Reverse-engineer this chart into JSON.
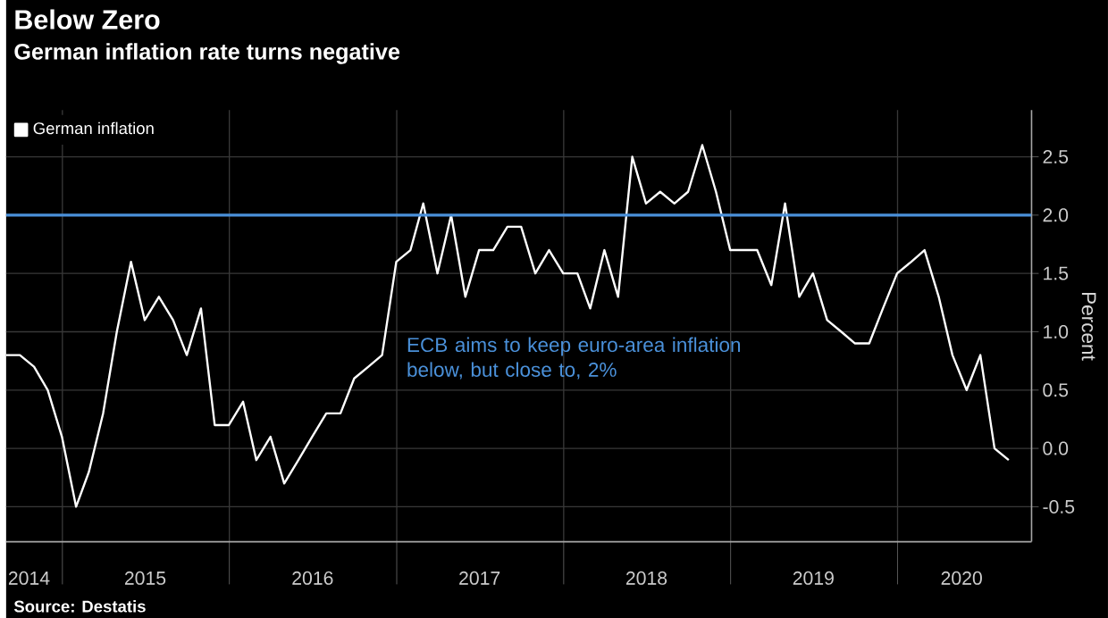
{
  "chart_data": {
    "type": "line",
    "title": "Below Zero",
    "subtitle": "German inflation rate turns negative",
    "ylabel": "Percent",
    "annotations": [
      "Source: Destatis"
    ],
    "x": [
      "2014-08-31",
      "2014-09-30",
      "2014-10-31",
      "2014-11-30",
      "2014-12-31",
      "2015-01-31",
      "2015-02-28",
      "2015-03-31",
      "2015-04-30",
      "2015-05-31",
      "2015-06-30",
      "2015-07-31",
      "2015-08-31",
      "2015-09-30",
      "2015-10-31",
      "2015-11-30",
      "2015-12-31",
      "2016-01-31",
      "2016-02-29",
      "2016-03-31",
      "2016-04-30",
      "2016-05-31",
      "2016-06-30",
      "2016-07-31",
      "2016-08-31",
      "2016-09-30",
      "2016-10-31",
      "2016-11-30",
      "2016-12-31",
      "2017-01-31",
      "2017-02-28",
      "2017-03-31",
      "2017-04-30",
      "2017-05-31",
      "2017-06-30",
      "2017-07-31",
      "2017-08-31",
      "2017-09-30",
      "2017-10-31",
      "2017-11-30",
      "2017-12-31",
      "2018-01-31",
      "2018-02-28",
      "2018-03-31",
      "2018-04-30",
      "2018-05-31",
      "2018-06-30",
      "2018-07-31",
      "2018-08-31",
      "2018-09-30",
      "2018-10-31",
      "2018-11-30",
      "2018-12-31",
      "2019-01-31",
      "2019-02-28",
      "2019-03-31",
      "2019-04-30",
      "2019-05-31",
      "2019-06-30",
      "2019-07-31",
      "2019-08-31",
      "2019-09-30",
      "2019-10-31",
      "2019-11-30",
      "2019-12-31",
      "2020-01-31",
      "2020-02-29",
      "2020-03-31",
      "2020-04-30",
      "2020-05-31",
      "2020-06-30",
      "2020-07-31",
      "2020-08-31"
    ],
    "series": [
      {
        "name": "German inflation",
        "color": "#ffffff",
        "values": [
          0.8,
          0.8,
          0.7,
          0.5,
          0.1,
          -0.5,
          -0.2,
          0.3,
          1.0,
          1.6,
          1.1,
          1.3,
          1.1,
          0.8,
          1.2,
          0.2,
          0.2,
          0.4,
          -0.1,
          0.1,
          -0.3,
          -0.1,
          0.1,
          0.3,
          0.3,
          0.6,
          0.7,
          0.8,
          1.6,
          1.7,
          2.1,
          1.5,
          2.0,
          1.3,
          1.7,
          1.7,
          1.9,
          1.9,
          1.5,
          1.7,
          1.5,
          1.5,
          1.2,
          1.7,
          1.3,
          2.5,
          2.1,
          2.2,
          2.1,
          2.2,
          2.6,
          2.2,
          1.7,
          1.7,
          1.7,
          1.4,
          2.1,
          1.3,
          1.5,
          1.1,
          1.0,
          0.9,
          0.9,
          1.2,
          1.5,
          1.6,
          1.7,
          1.3,
          0.8,
          0.5,
          0.8,
          0.0,
          -0.1
        ]
      }
    ],
    "xlim": [
      "2014-08-31",
      "2020-10-20"
    ],
    "ylim": [
      -0.8,
      2.9
    ],
    "xticks": [
      {
        "value": "2014-10-20",
        "label": "2014"
      },
      {
        "value": "2015-01-01",
        "label": null
      },
      {
        "value": "2015-07-01",
        "label": "2015"
      },
      {
        "value": "2016-01-01",
        "label": null
      },
      {
        "value": "2016-07-01",
        "label": "2016"
      },
      {
        "value": "2017-01-01",
        "label": null
      },
      {
        "value": "2017-07-01",
        "label": "2017"
      },
      {
        "value": "2018-01-01",
        "label": null
      },
      {
        "value": "2018-07-01",
        "label": "2018"
      },
      {
        "value": "2019-01-01",
        "label": null
      },
      {
        "value": "2019-07-01",
        "label": "2019"
      },
      {
        "value": "2020-01-01",
        "label": null
      },
      {
        "value": "2020-05-20",
        "label": "2020"
      }
    ],
    "yticks": [
      {
        "value": -0.5,
        "label": "-0.5"
      },
      {
        "value": 0,
        "label": "0.0"
      },
      {
        "value": 0.5,
        "label": "0.5"
      },
      {
        "value": 1,
        "label": "1.0"
      },
      {
        "value": 1.5,
        "label": "1.5"
      },
      {
        "value": 2,
        "label": "2.0"
      },
      {
        "value": 2.5,
        "label": "2.5"
      }
    ],
    "ref_lines": [
      {
        "axis": "y",
        "value": 2.0,
        "label": "ECB aims to keep euro-area inflation below, but close to, 2%",
        "color": "#4a90d9"
      }
    ],
    "grid": true,
    "legend": "top left"
  }
}
